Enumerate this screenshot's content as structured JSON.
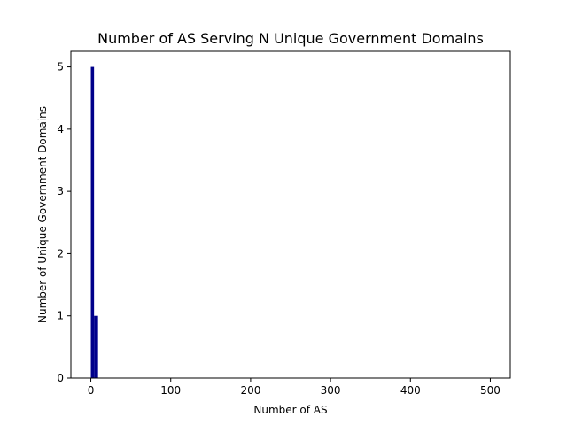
{
  "chart_data": {
    "type": "bar",
    "title": "Number of AS Serving N Unique Government Domains",
    "xlabel": "Number of AS",
    "ylabel": "Number of Unique Government Domains",
    "xlim": [
      -25,
      525
    ],
    "ylim": [
      0,
      5.25
    ],
    "xticks": [
      0,
      100,
      200,
      300,
      400,
      500
    ],
    "yticks": [
      0,
      1,
      2,
      3,
      4,
      5
    ],
    "grid": false,
    "bar_color": "#00008b",
    "bars": [
      {
        "x0": 0,
        "x1": 4,
        "value": 5
      },
      {
        "x0": 4,
        "x1": 9,
        "value": 1
      }
    ]
  }
}
